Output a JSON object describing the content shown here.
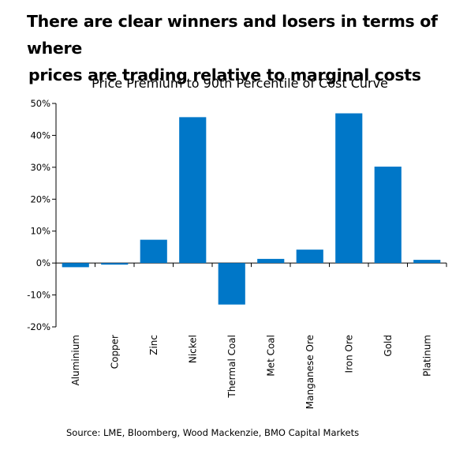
{
  "headline": {
    "line1": "There are clear winners and losers in terms of where",
    "line2": "prices are trading relative to marginal costs"
  },
  "source": "Source: LME, Bloomberg, Wood Mackenzie, BMO Capital Markets",
  "chart_data": {
    "type": "bar",
    "title": "Price Premium to 90th Percentile of Cost Curve",
    "categories": [
      "Aluminium",
      "Copper",
      "Zinc",
      "Nickel",
      "Thermal Coal",
      "Met Coal",
      "Manganese Ore",
      "Iron Ore",
      "Gold",
      "Platinum"
    ],
    "values": [
      -1.3,
      -0.5,
      7.3,
      45.7,
      -13.0,
      1.3,
      4.2,
      46.9,
      30.2,
      1.0
    ],
    "y_ticks": [
      "50%",
      "40%",
      "30%",
      "20%",
      "10%",
      "0%",
      "-10%",
      "-20%"
    ],
    "ylim": [
      -20,
      50
    ],
    "unit": "%",
    "bar_color": "#0077C8",
    "grid": false,
    "legend": "none"
  }
}
